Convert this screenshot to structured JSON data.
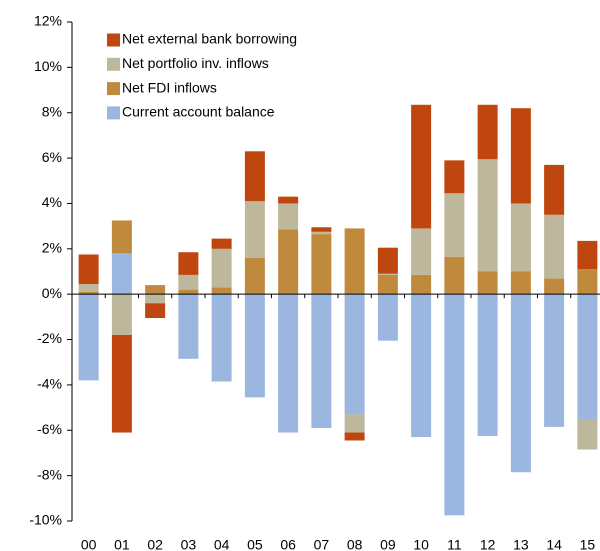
{
  "chart_data": {
    "type": "bar",
    "stacked": true,
    "categories": [
      "00",
      "01",
      "02",
      "03",
      "04",
      "05",
      "06",
      "07",
      "08",
      "09",
      "10",
      "11",
      "12",
      "13",
      "14",
      "15"
    ],
    "series": [
      {
        "name": "Net external bank borrowing",
        "color": "#c0460f",
        "values": [
          1.3,
          -4.3,
          -0.65,
          1.0,
          0.45,
          2.2,
          0.3,
          0.2,
          -0.35,
          1.15,
          5.45,
          1.45,
          2.4,
          4.2,
          2.2,
          1.25
        ]
      },
      {
        "name": "Net portfolio inv. inflows",
        "color": "#bdb79b",
        "values": [
          0.35,
          -1.8,
          -0.4,
          0.65,
          1.7,
          2.5,
          1.15,
          0.1,
          -0.8,
          0.05,
          2.05,
          2.8,
          4.95,
          3.0,
          2.8,
          -1.35
        ]
      },
      {
        "name": "Net FDI inflows",
        "color": "#c08a3e",
        "values": [
          0.1,
          1.45,
          0.4,
          0.2,
          0.3,
          1.6,
          2.85,
          2.65,
          2.9,
          0.85,
          0.85,
          1.65,
          1.0,
          1.0,
          0.7,
          1.1
        ]
      },
      {
        "name": "Current account balance",
        "color": "#9bb7e0",
        "values": [
          -3.8,
          1.8,
          0,
          -2.85,
          -3.85,
          -4.55,
          -6.1,
          -5.9,
          -5.3,
          -2.05,
          -6.3,
          -9.75,
          -6.25,
          -7.85,
          -5.85,
          -5.5
        ]
      }
    ],
    "ylim": [
      -10,
      12
    ],
    "yticks": [
      {
        "value": -10,
        "label": "-10%"
      },
      {
        "value": -8,
        "label": "-8%"
      },
      {
        "value": -6,
        "label": "-6%"
      },
      {
        "value": -4,
        "label": "-4%"
      },
      {
        "value": -2,
        "label": "-2%"
      },
      {
        "value": 0,
        "label": "0%"
      },
      {
        "value": 2,
        "label": "2%"
      },
      {
        "value": 4,
        "label": "4%"
      },
      {
        "value": 6,
        "label": "6%"
      },
      {
        "value": 8,
        "label": "8%"
      },
      {
        "value": 10,
        "label": "10%"
      },
      {
        "value": 12,
        "label": "12%"
      }
    ],
    "grid": false,
    "legend": "upper left"
  }
}
